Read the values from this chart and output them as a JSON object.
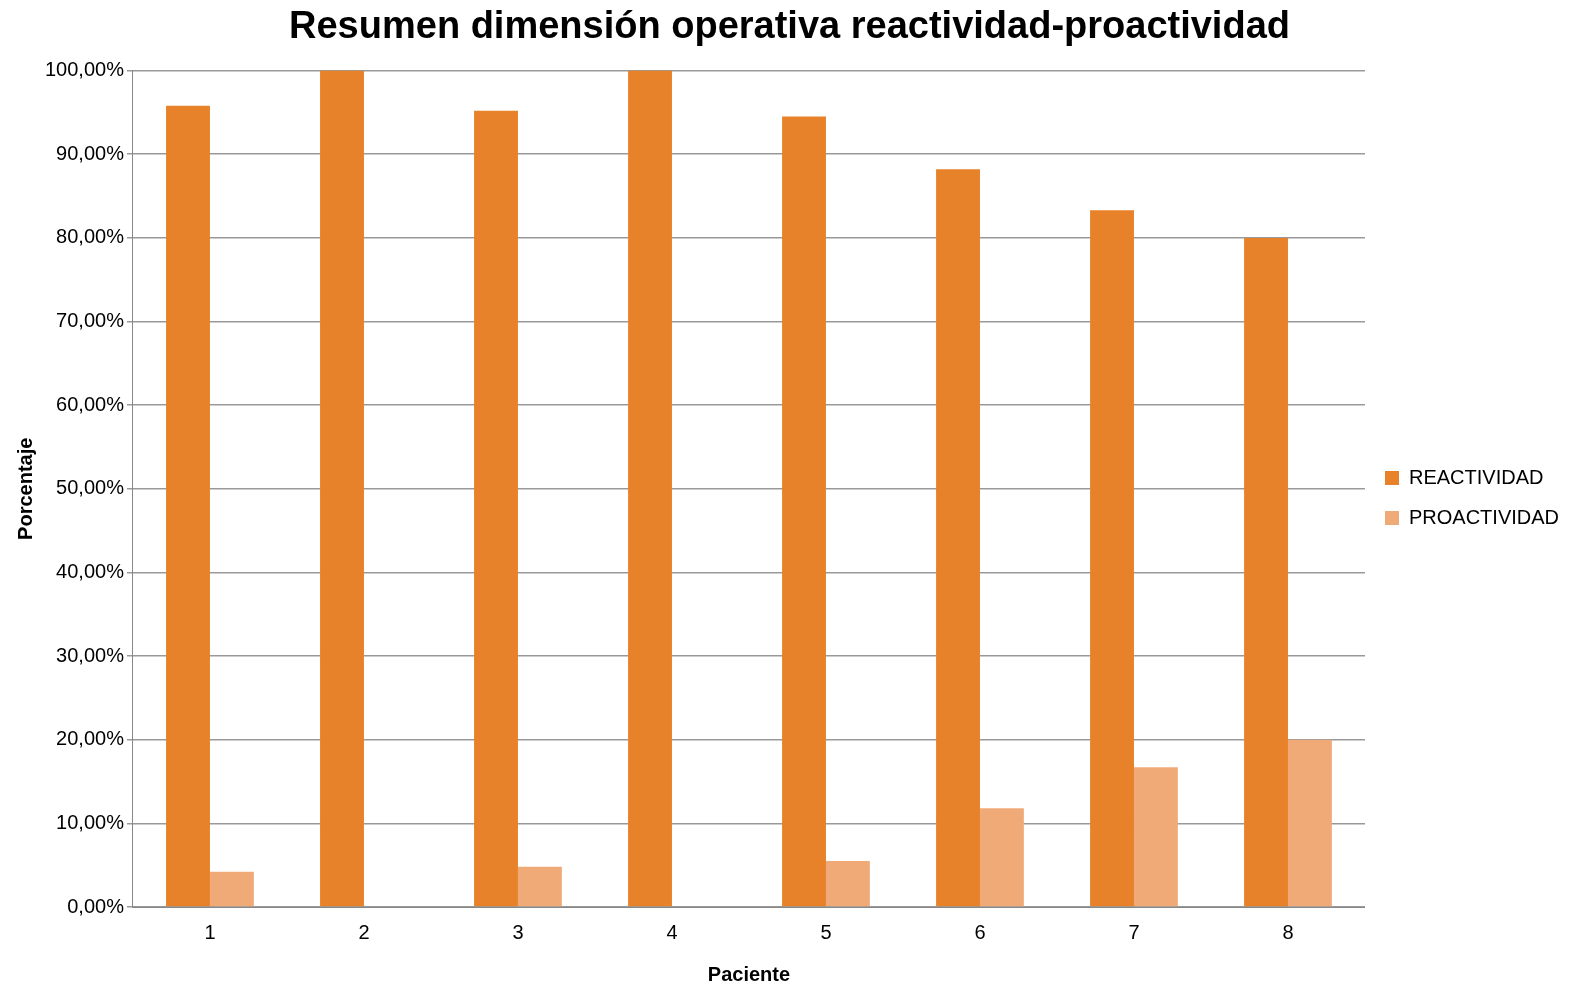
{
  "chart_data": {
    "type": "bar",
    "title": "Resumen dimensión operativa reactividad-proactividad",
    "xlabel": "Paciente",
    "ylabel": "Porcentaje",
    "categories": [
      "1",
      "2",
      "3",
      "4",
      "5",
      "6",
      "7",
      "8"
    ],
    "series": [
      {
        "name": "REACTIVIDAD",
        "color": "#e8822a",
        "values": [
          95.8,
          100,
          95.2,
          100,
          94.5,
          88.2,
          83.3,
          80
        ]
      },
      {
        "name": "PROACTIVIDAD",
        "color": "#f0aa78",
        "values": [
          4.2,
          0,
          4.8,
          0,
          5.5,
          11.8,
          16.7,
          20
        ]
      }
    ],
    "ylim": [
      0,
      100
    ],
    "yticks": [
      {
        "value": 0,
        "label": "0,00%"
      },
      {
        "value": 10,
        "label": "10,00%"
      },
      {
        "value": 20,
        "label": "20,00%"
      },
      {
        "value": 30,
        "label": "30,00%"
      },
      {
        "value": 40,
        "label": "40,00%"
      },
      {
        "value": 50,
        "label": "50,00%"
      },
      {
        "value": 60,
        "label": "60,00%"
      },
      {
        "value": 70,
        "label": "70,00%"
      },
      {
        "value": 80,
        "label": "80,00%"
      },
      {
        "value": 90,
        "label": "90,00%"
      },
      {
        "value": 100,
        "label": "100,00%"
      }
    ],
    "grid": "y",
    "legend": "right"
  }
}
